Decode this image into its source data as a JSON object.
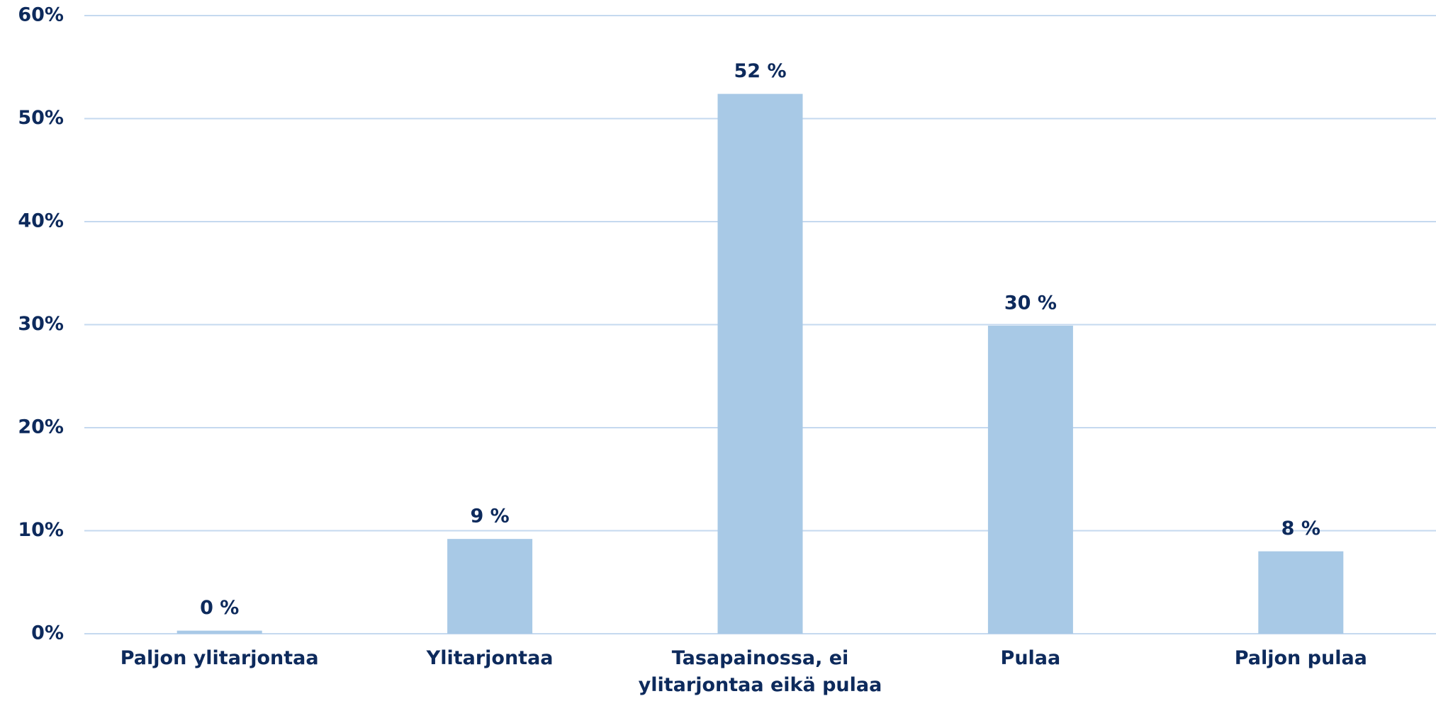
{
  "chart_data": {
    "type": "bar",
    "categories": [
      "Paljon ylitarjontaa",
      "Ylitarjontaa",
      "Tasapainossa, ei ylitarjontaa eikä pulaa",
      "Pulaa",
      "Paljon pulaa"
    ],
    "values": [
      0.3,
      9.2,
      52.4,
      29.9,
      8.0
    ],
    "value_labels": [
      "0 %",
      "9 %",
      "52 %",
      "30 %",
      "8 %"
    ],
    "color": "#a8c9e6",
    "ylim": [
      0,
      60
    ],
    "yticks": [
      {
        "value": 0,
        "label": "0%"
      },
      {
        "value": 10,
        "label": "10%"
      },
      {
        "value": 20,
        "label": "20%"
      },
      {
        "value": 30,
        "label": "30%"
      },
      {
        "value": 40,
        "label": "40%"
      },
      {
        "value": 50,
        "label": "50%"
      },
      {
        "value": 60,
        "label": "60%"
      }
    ],
    "grid": true
  }
}
